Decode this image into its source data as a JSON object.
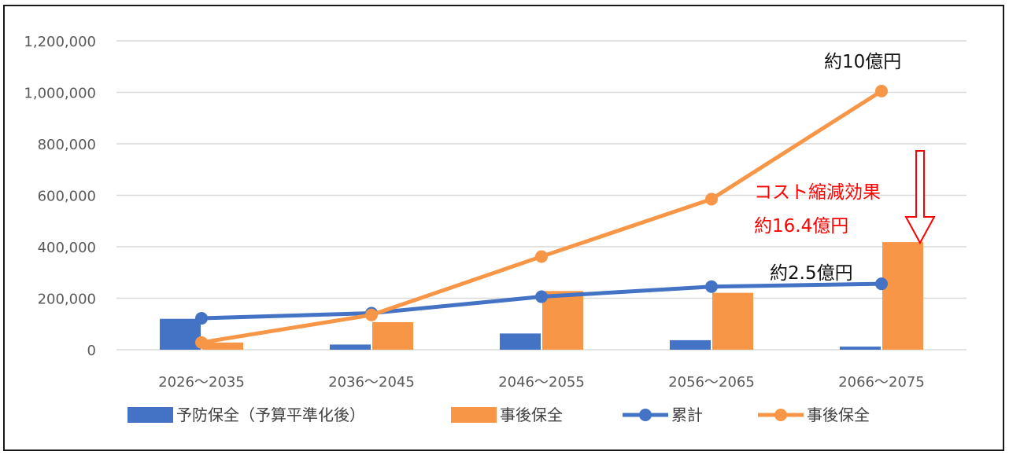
{
  "colors": {
    "blue": "#4472C4",
    "orange": "#F79646",
    "grid": "#D9D9D9",
    "red": "#FF0000",
    "text": "#595959"
  },
  "chart_data": {
    "type": "bar",
    "categories": [
      "2026～2035",
      "2036～2045",
      "2046～2055",
      "2056～2065",
      "2066～2075"
    ],
    "ylim": [
      0,
      1200000
    ],
    "y_ticks": [
      {
        "value": 0,
        "label": "0"
      },
      {
        "value": 200000,
        "label": "200,000"
      },
      {
        "value": 400000,
        "label": "400,000"
      },
      {
        "value": 600000,
        "label": "600,000"
      },
      {
        "value": 800000,
        "label": "800,000"
      },
      {
        "value": 1000000,
        "label": "1,000,000"
      },
      {
        "value": 1200000,
        "label": "1,200,000"
      }
    ],
    "grid": true,
    "legend_position": "bottom",
    "series": [
      {
        "name": "予防保全（予算平準化後）",
        "kind": "bar",
        "color": "#4472C4",
        "values": [
          120000,
          20000,
          63000,
          37000,
          12000
        ]
      },
      {
        "name": "事後保全",
        "kind": "bar",
        "color": "#F79646",
        "values": [
          28000,
          107000,
          228000,
          221000,
          418000
        ]
      },
      {
        "name": "累計",
        "kind": "line",
        "color": "#4472C4",
        "values": [
          122000,
          142000,
          206000,
          245000,
          256000
        ]
      },
      {
        "name": "事後保全",
        "kind": "line",
        "color": "#F79646",
        "values": [
          28000,
          135000,
          362000,
          585000,
          1005000
        ]
      }
    ],
    "annotations": {
      "top": "約10億円",
      "reduction_line1": "コスト縮減効果",
      "reduction_line2": "約16.4億円",
      "cumulative": "約2.5億円"
    }
  }
}
